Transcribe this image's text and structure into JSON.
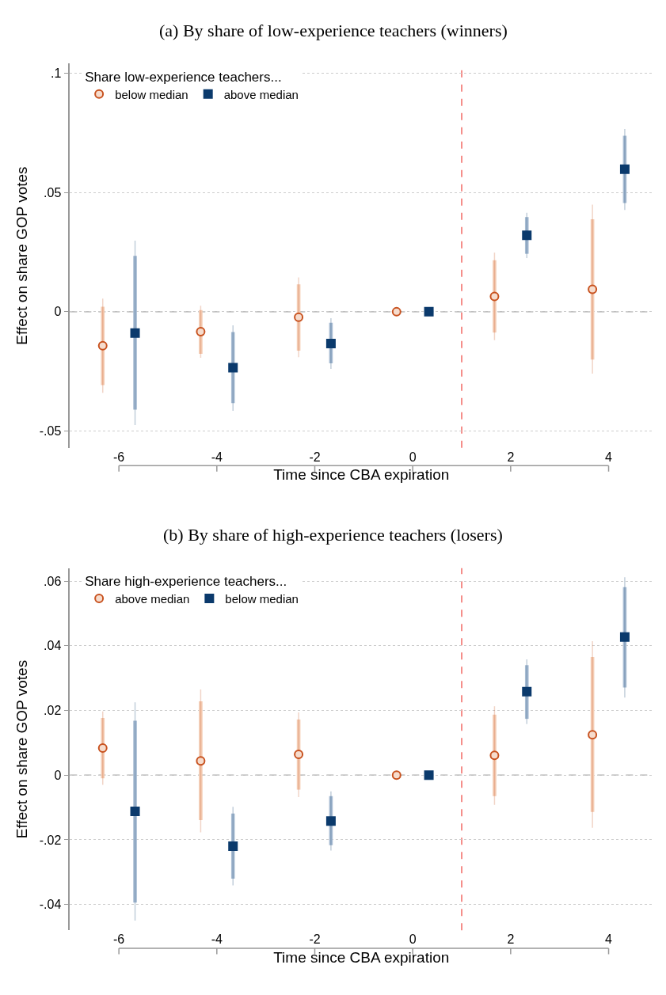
{
  "chart_data": [
    {
      "type": "scatter",
      "title": "(a) By share of low-experience teachers (winners)",
      "xlabel": "Time since CBA expiration",
      "ylabel": "Effect on share GOP votes",
      "legend_title": "Share low-experience teachers...",
      "legend": "top left",
      "xlim": [
        -7,
        4.9
      ],
      "xticks": [
        -6,
        -4,
        -2,
        0,
        2,
        4
      ],
      "ylim": [
        -0.057,
        0.104
      ],
      "yticks": [
        {
          "value": -0.05,
          "label": "-.05"
        },
        0,
        {
          "value": 0.05,
          "label": ".05"
        },
        {
          "value": 0.1,
          "label": ".1"
        }
      ],
      "grid": "y",
      "ref_lines": [
        {
          "axis": "y",
          "value": 0,
          "color": "#aaaaaa",
          "line_style": "dashed"
        },
        {
          "axis": "x",
          "value": 1,
          "color": "#f0504a",
          "line_style": "dashed"
        }
      ],
      "series": [
        {
          "type": "bar",
          "color": "#f4cdb5",
          "x": [
            -6.33,
            -4.33,
            -2.33,
            -0.33,
            1.67,
            3.67
          ],
          "base": [
            -0.0307,
            -0.0176,
            -0.0163,
            null,
            -0.0087,
            -0.02
          ],
          "values": [
            0.0328,
            0.0183,
            0.0278,
            null,
            0.0303,
            0.0588
          ]
        },
        {
          "type": "bar",
          "color": "#a9bdd3",
          "x": [
            -5.67,
            -3.67,
            -1.67,
            0.33,
            2.33,
            4.33
          ],
          "base": [
            -0.041,
            -0.0383,
            -0.0216,
            null,
            0.0243,
            0.0456
          ],
          "values": [
            0.0644,
            0.0298,
            0.017,
            null,
            0.0154,
            0.0282
          ]
        },
        {
          "name": "below median",
          "color": "#c8521f",
          "marker": "circle",
          "x": [
            -6.33,
            -4.33,
            -2.33,
            -0.33,
            1.67,
            3.67
          ],
          "values": [
            -0.0142,
            -0.0083,
            -0.0023,
            0,
            0.0064,
            0.0094
          ],
          "errors": [
            [
              -0.034,
              0.0055
            ],
            [
              -0.0193,
              0.0025
            ],
            [
              -0.019,
              0.0144
            ],
            null,
            [
              -0.0119,
              0.0248
            ],
            [
              -0.0259,
              0.0449
            ]
          ]
        },
        {
          "name": "above median",
          "color": "#0b3a6c",
          "marker": "square",
          "x": [
            -5.67,
            -3.67,
            -1.67,
            0.33,
            2.33,
            4.33
          ],
          "values": [
            -0.0089,
            -0.0234,
            -0.0133,
            0,
            0.0321,
            0.0598
          ],
          "errors": [
            [
              -0.0475,
              0.0298
            ],
            [
              -0.0415,
              -0.0057
            ],
            [
              -0.0239,
              -0.0027
            ],
            null,
            [
              0.0225,
              0.0415
            ],
            [
              0.0427,
              0.0766
            ]
          ]
        }
      ]
    },
    {
      "type": "scatter",
      "title": "(b) By share of high-experience teachers (losers)",
      "xlabel": "Time since CBA expiration",
      "ylabel": "Effect on share GOP votes",
      "legend_title": "Share high-experience teachers...",
      "legend": "top left",
      "xlim": [
        -7,
        4.9
      ],
      "xticks": [
        -6,
        -4,
        -2,
        0,
        2,
        4
      ],
      "ylim": [
        -0.048,
        0.064
      ],
      "yticks": [
        {
          "value": -0.04,
          "label": "-.04"
        },
        {
          "value": -0.02,
          "label": "-.02"
        },
        0,
        {
          "value": 0.02,
          "label": ".02"
        },
        {
          "value": 0.04,
          "label": ".04"
        },
        {
          "value": 0.06,
          "label": ".06"
        }
      ],
      "grid": "y",
      "ref_lines": [
        {
          "axis": "y",
          "value": 0,
          "color": "#aaaaaa",
          "line_style": "dashed"
        },
        {
          "axis": "x",
          "value": 1,
          "color": "#f0504a",
          "line_style": "dashed"
        }
      ],
      "series": [
        {
          "type": "bar",
          "color": "#f4cdb5",
          "x": [
            -6.33,
            -4.33,
            -2.33,
            -0.33,
            1.67,
            3.67
          ],
          "base": [
            -0.001,
            -0.0139,
            -0.0045,
            null,
            -0.0065,
            -0.0114
          ],
          "values": [
            0.0187,
            0.0367,
            0.0217,
            null,
            0.0252,
            0.0479
          ]
        },
        {
          "type": "bar",
          "color": "#a9bdd3",
          "x": [
            -5.67,
            -3.67,
            -1.67,
            0.33,
            2.33,
            4.33
          ],
          "base": [
            -0.0394,
            -0.032,
            -0.0217,
            null,
            0.0174,
            0.0271
          ],
          "values": [
            0.0562,
            0.0201,
            0.0152,
            null,
            0.0166,
            0.031
          ]
        },
        {
          "name": "above median",
          "color": "#c8521f",
          "marker": "circle",
          "x": [
            -6.33,
            -4.33,
            -2.33,
            -0.33,
            1.67,
            3.67
          ],
          "values": [
            0.0084,
            0.0044,
            0.0064,
            0,
            0.0061,
            0.0125
          ],
          "errors": [
            [
              -0.003,
              0.0197
            ],
            [
              -0.0177,
              0.0265
            ],
            [
              -0.0068,
              0.0194
            ],
            null,
            [
              -0.0092,
              0.0213
            ],
            [
              -0.0163,
              0.0414
            ]
          ]
        },
        {
          "name": "below median",
          "color": "#0b3a6c",
          "marker": "square",
          "x": [
            -5.67,
            -3.67,
            -1.67,
            0.33,
            2.33,
            4.33
          ],
          "values": [
            -0.0112,
            -0.022,
            -0.0142,
            0,
            0.0258,
            0.0427
          ],
          "errors": [
            [
              -0.045,
              0.0225
            ],
            [
              -0.0341,
              -0.0098
            ],
            [
              -0.0233,
              -0.005
            ],
            null,
            [
              0.0158,
              0.0358
            ],
            [
              0.024,
              0.0612
            ]
          ]
        }
      ]
    }
  ]
}
